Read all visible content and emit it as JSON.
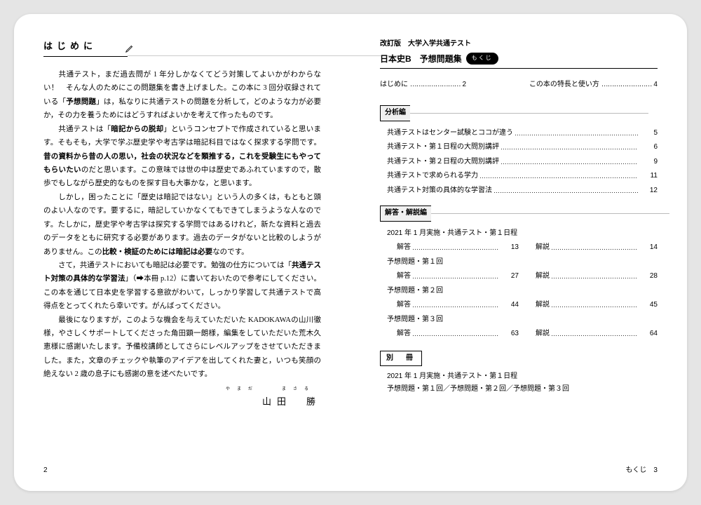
{
  "left": {
    "title": "はじめに",
    "paragraphs": [
      "　共通テスト，まだ過去問が 1 年分しかなくてどう対策してよいかがわからない！　そんな人のためにこの問題集を書き上げました。この本に 3 回分収録されている「<strong>予想問題</strong>」は，私なりに共通テストの問題を分析して，どのような力が必要か，その力を養うためにはどうすればよいかを考えて作ったものです。",
      "　共通テストは「<strong>暗記からの脱却</strong>」というコンセプトで作成されていると思います。そもそも，大学で学ぶ歴史学や考古学は暗記科目ではなく探求する学問です。<strong>昔の資料から昔の人の思い，社会の状況などを類推する，これを受験生にもやってもらいたい</strong>のだと思います。この意味では世の中は歴史であふれていますので，散歩でもしながら歴史的なものを探す目も大事かな，と思います。",
      "　しかし，困ったことに「歴史は暗記ではない」という人の多くは，もともと頭のよい人なのです。要するに，暗記していかなくてもできてしまうような人なのです。たしかに，歴史学や考古学は探究する学問ではあるけれど，新たな資料と過去のデータをともに研究する必要があります。過去のデータがないと比較のしようがありません。この<strong>比較・検証のためには暗記は必要</strong>なのです。",
      "　さて，共通テストにおいても暗記は必要です。勉強の仕方については「<strong>共通テスト対策の具体的な学習法</strong>」（➡本冊 p.12）に書いておいたので参考にしてください。この本を通じて日本史を学習する意欲がわいて，しっかり学習して共通テストで高得点をとってくれたら幸いです。がんばってください。",
      "　最後になりますが，このような機会を与えていただいた KADOKAWAの山川徹様，やさしくサポートしてくださった角田顕一朗様，編集をしていただいた荒木久恵様に感謝いたします。予備校講師としてさらにレベルアップをさせていただきました。また，文章のチェックや執筆のアイデアを出してくれた妻と，いつも笑顔の絶えない 2 歳の息子にも感謝の意を述べたいです。"
    ],
    "furigana": "やまだ　　まさる",
    "author": "山田　勝",
    "pageNumber": "2"
  },
  "right": {
    "header_line1": "改訂版　大学入学共通テスト",
    "header_line2": "日本史B　予想問題集",
    "mokuji_badge": "もくじ",
    "top_row": [
      {
        "label": "はじめに",
        "page": "2"
      },
      {
        "label": "この本の特長と使い方",
        "page": "4"
      }
    ],
    "sections": [
      {
        "label": "分析編",
        "items_flat": [
          {
            "label": "共通テストはセンター試験とココが違う",
            "page": "5"
          },
          {
            "label": "共通テスト・第１日程の大問別講評",
            "page": "6"
          },
          {
            "label": "共通テスト・第２日程の大問別講評",
            "page": "9"
          },
          {
            "label": "共通テストで求められる学力",
            "page": "11"
          },
          {
            "label": "共通テスト対策の具体的な学習法",
            "page": "12"
          }
        ]
      },
      {
        "label": "解答・解説編",
        "groups": [
          {
            "heading": "2021 年 1 月実施・共通テスト・第１日程",
            "pair": {
              "l1": "解答",
              "p1": "13",
              "l2": "解説",
              "p2": "14"
            }
          },
          {
            "heading": "予想問題・第１回",
            "pair": {
              "l1": "解答",
              "p1": "27",
              "l2": "解説",
              "p2": "28"
            }
          },
          {
            "heading": "予想問題・第２回",
            "pair": {
              "l1": "解答",
              "p1": "44",
              "l2": "解説",
              "p2": "45"
            }
          },
          {
            "heading": "予想問題・第３回",
            "pair": {
              "l1": "解答",
              "p1": "63",
              "l2": "解説",
              "p2": "64"
            }
          }
        ]
      }
    ],
    "besshi_label": "別　冊",
    "besshi_lines": [
      "2021 年 1 月実施・共通テスト・第１日程",
      "予想問題・第１回／予想問題・第２回／予想問題・第３回"
    ],
    "pageNumber": "もくじ　3"
  },
  "colors": {
    "page_bg": "#ffffff",
    "outer_bg": "#e5e5e5",
    "text": "#000000"
  }
}
